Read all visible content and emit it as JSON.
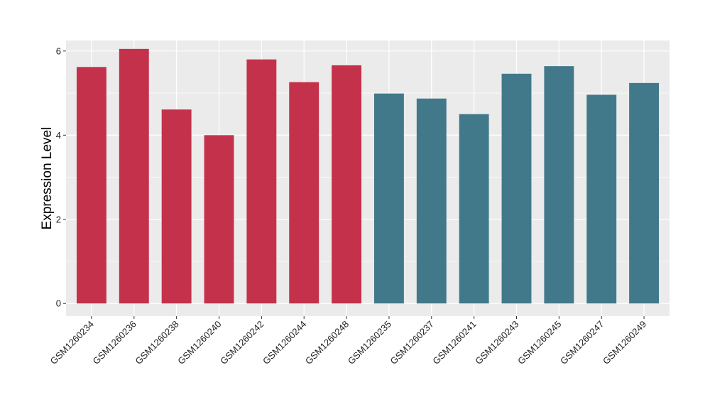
{
  "chart_data": {
    "type": "bar",
    "title": "",
    "xlabel": "",
    "ylabel": "Expression Level",
    "ylim": [
      -0.3,
      6.25
    ],
    "yticks": [
      0,
      2,
      4,
      6
    ],
    "grid": true,
    "legend": "none",
    "categories": [
      "GSM1260234",
      "GSM1260236",
      "GSM1260238",
      "GSM1260240",
      "GSM1260242",
      "GSM1260244",
      "GSM1260248",
      "GSM1260235",
      "GSM1260237",
      "GSM1260241",
      "GSM1260243",
      "GSM1260245",
      "GSM1260247",
      "GSM1260249"
    ],
    "values": [
      5.62,
      6.05,
      4.61,
      4.0,
      5.8,
      5.26,
      5.66,
      4.99,
      4.87,
      4.5,
      5.46,
      5.64,
      4.96,
      5.24
    ],
    "bar_colors": [
      "#C4314B",
      "#C4314B",
      "#C4314B",
      "#C4314B",
      "#C4314B",
      "#C4314B",
      "#C4314B",
      "#41798B",
      "#41798B",
      "#41798B",
      "#41798B",
      "#41798B",
      "#41798B",
      "#41798B"
    ]
  },
  "style": {
    "panel_bg": "#EBEBEB",
    "grid_color": "#FFFFFF"
  }
}
